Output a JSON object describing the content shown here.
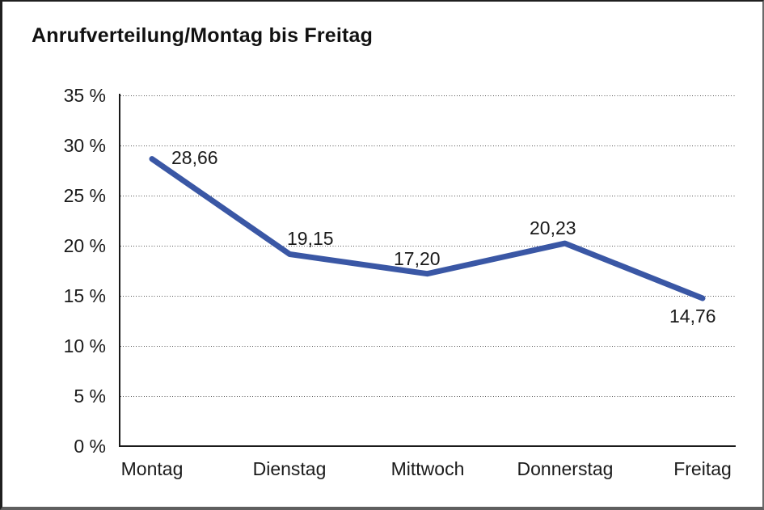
{
  "page": {
    "background": "#ffffff",
    "frame_color": "#1f1f1f"
  },
  "chart_data": {
    "type": "line",
    "title": "Anrufverteilung/Montag bis Freitag",
    "categories": [
      "Montag",
      "Dienstag",
      "Mittwoch",
      "Donnerstag",
      "Freitag"
    ],
    "values": [
      28.66,
      19.15,
      17.2,
      20.23,
      14.76
    ],
    "value_labels": [
      "28,66",
      "19,15",
      "17,20",
      "20,23",
      "14,76"
    ],
    "xlabel": "",
    "ylabel": "",
    "ylim": [
      0,
      35
    ],
    "ytick_step": 5,
    "ytick_labels": [
      "0 %",
      "5 %",
      "10 %",
      "15 %",
      "20 %",
      "25 %",
      "30 %",
      "35 %"
    ],
    "grid": "horizontal-dotted",
    "legend": "none",
    "line_color": "#3A57A5",
    "grid_color": "#555555",
    "axis_color": "#1a1a1a",
    "text_color": "#1a1a1a"
  }
}
